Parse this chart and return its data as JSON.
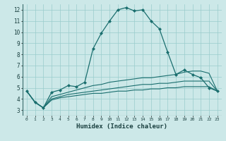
{
  "title": "",
  "xlabel": "Humidex (Indice chaleur)",
  "background_color": "#cce8e8",
  "grid_color": "#99cccc",
  "line_color": "#1a6e6e",
  "xlim": [
    -0.5,
    23.5
  ],
  "ylim": [
    2.5,
    12.5
  ],
  "xticks": [
    0,
    1,
    2,
    3,
    4,
    5,
    6,
    7,
    8,
    9,
    10,
    11,
    12,
    13,
    14,
    15,
    16,
    17,
    18,
    19,
    20,
    21,
    22,
    23
  ],
  "yticks": [
    3,
    4,
    5,
    6,
    7,
    8,
    9,
    10,
    11,
    12
  ],
  "series_main": [
    4.7,
    3.7,
    3.2,
    4.6,
    4.8,
    5.2,
    5.1,
    5.5,
    8.5,
    9.9,
    11.0,
    12.0,
    12.2,
    11.9,
    12.0,
    11.0,
    10.3,
    8.2,
    6.2,
    6.6,
    6.2,
    5.9,
    5.0,
    4.7
  ],
  "series_low": [
    4.7,
    3.7,
    3.2,
    3.9,
    4.1,
    4.2,
    4.3,
    4.4,
    4.5,
    4.5,
    4.6,
    4.7,
    4.7,
    4.8,
    4.8,
    4.9,
    4.9,
    5.0,
    5.0,
    5.1,
    5.1,
    5.1,
    5.1,
    4.7
  ],
  "series_mid": [
    4.7,
    3.7,
    3.2,
    4.0,
    4.2,
    4.4,
    4.5,
    4.6,
    4.7,
    4.8,
    4.9,
    5.0,
    5.1,
    5.2,
    5.3,
    5.3,
    5.4,
    5.4,
    5.5,
    5.6,
    5.6,
    5.6,
    5.6,
    4.7
  ],
  "series_high": [
    4.7,
    3.7,
    3.2,
    4.2,
    4.4,
    4.6,
    4.8,
    5.0,
    5.2,
    5.3,
    5.5,
    5.6,
    5.7,
    5.8,
    5.9,
    5.9,
    6.0,
    6.1,
    6.2,
    6.4,
    6.5,
    6.5,
    6.3,
    4.7
  ]
}
